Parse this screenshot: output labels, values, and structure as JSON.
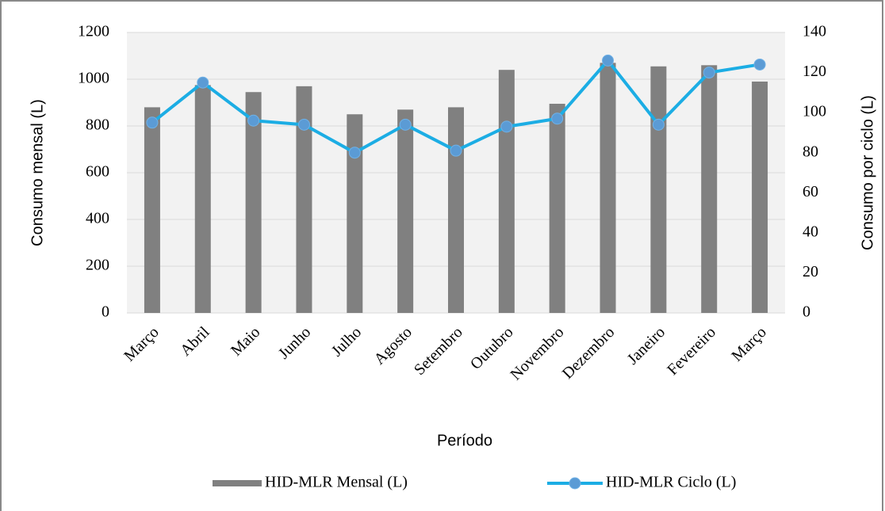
{
  "chart_data": {
    "type": "bar+line",
    "xlabel": "Período",
    "ylabel": "Consumo mensal (L)",
    "y2label": "Consumo por ciclo (L)",
    "categories": [
      "Março",
      "Abril",
      "Maio",
      "Junho",
      "Julho",
      "Agosto",
      "Setembro",
      "Outubro",
      "Novembro",
      "Dezembro",
      "Janeiro",
      "Fevereiro",
      "Março"
    ],
    "series": [
      {
        "name": "HID-MLR Mensal (L)",
        "type": "bar",
        "axis": "y",
        "color": "#808080",
        "values": [
          880,
          975,
          945,
          970,
          850,
          870,
          880,
          1040,
          895,
          1070,
          1055,
          1060,
          990
        ]
      },
      {
        "name": "HID-MLR Ciclo (L)",
        "type": "line",
        "axis": "y2",
        "color": "#1cade4",
        "marker_color": "#5b9bd5",
        "values": [
          95,
          115,
          96,
          94,
          80,
          94,
          81,
          93,
          97,
          126,
          94,
          120,
          124
        ]
      }
    ],
    "ylim": [
      0,
      1200
    ],
    "yticks": [
      0,
      200,
      400,
      600,
      800,
      1000,
      1200
    ],
    "y2lim": [
      0,
      140
    ],
    "y2ticks": [
      0,
      20,
      40,
      60,
      80,
      100,
      120,
      140
    ],
    "grid": true,
    "legend": "bottom"
  }
}
